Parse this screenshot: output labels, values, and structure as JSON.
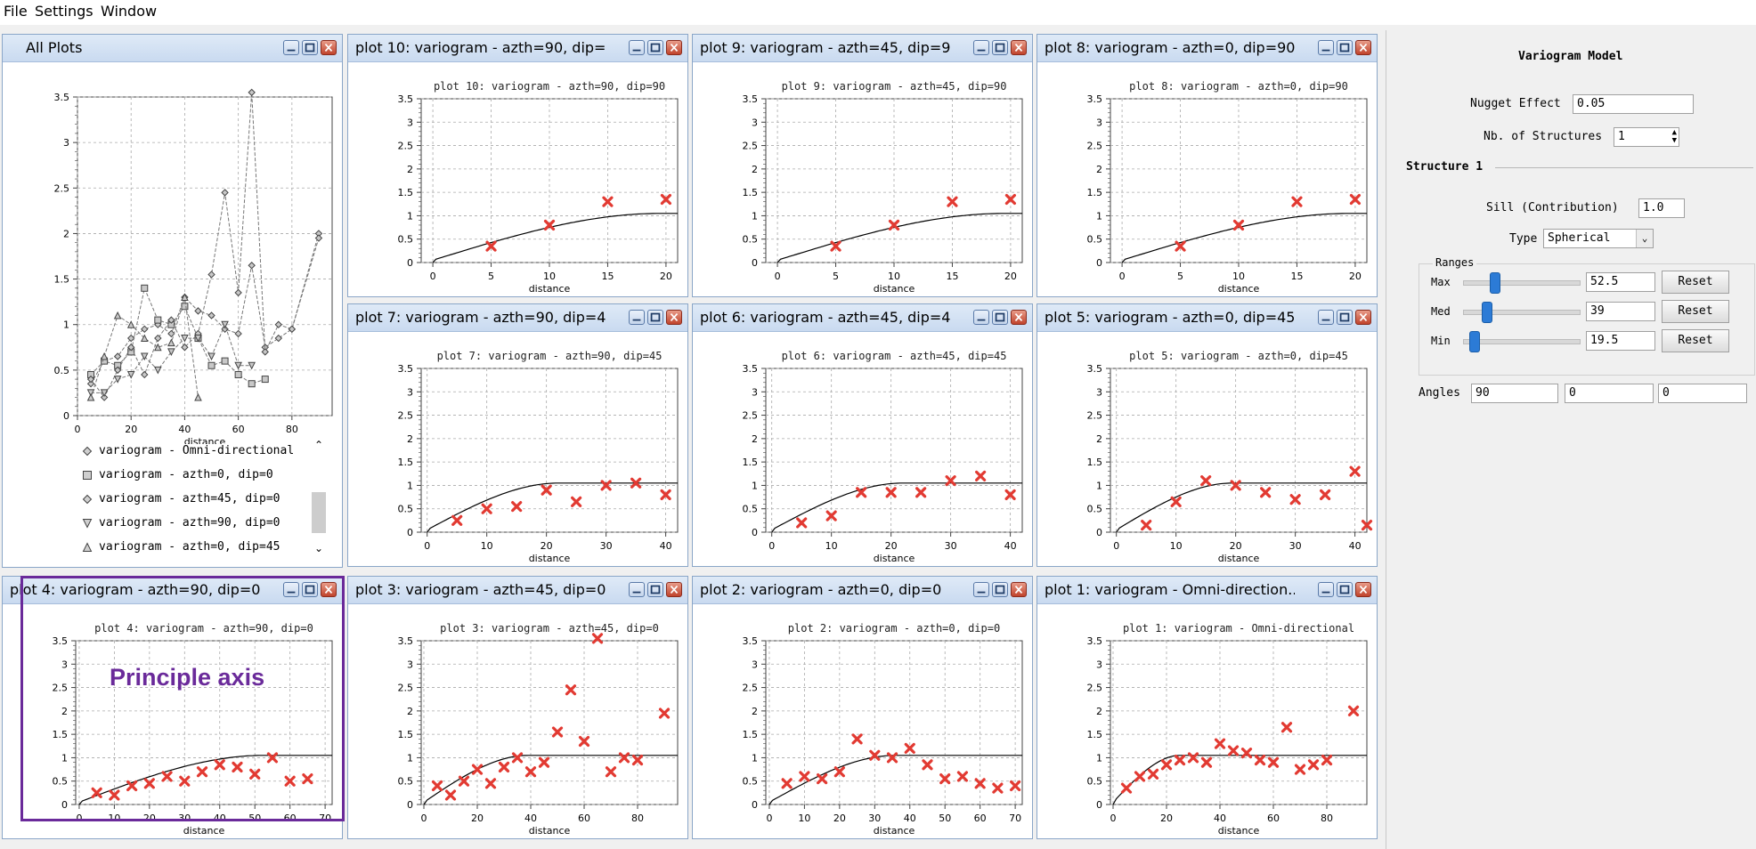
{
  "menu": {
    "items": [
      "File",
      "Settings",
      "Window"
    ]
  },
  "all_plots": {
    "title": "All Plots",
    "xlabel": "distance",
    "legend": [
      "variogram - Omni-directional",
      "variogram - azth=0, dip=0",
      "variogram - azth=45, dip=0",
      "variogram - azth=90, dip=0",
      "variogram - azth=0, dip=45"
    ]
  },
  "plots": [
    {
      "id": "plot10",
      "title": "plot 10:  variogram - azth=90, dip=...",
      "inner_title": "plot 10:  variogram - azth=90, dip=90"
    },
    {
      "id": "plot9",
      "title": "plot 9:  variogram - azth=45, dip=9...",
      "inner_title": "plot 9:  variogram - azth=45, dip=90"
    },
    {
      "id": "plot8",
      "title": "plot 8:  variogram - azth=0, dip=90",
      "inner_title": "plot 8:  variogram - azth=0, dip=90"
    },
    {
      "id": "plot7",
      "title": "plot 7:  variogram - azth=90, dip=4...",
      "inner_title": "plot 7:  variogram - azth=90, dip=45"
    },
    {
      "id": "plot6",
      "title": "plot 6:  variogram - azth=45, dip=4...",
      "inner_title": "plot 6:  variogram - azth=45, dip=45"
    },
    {
      "id": "plot5",
      "title": "plot 5:  variogram - azth=0, dip=45",
      "inner_title": "plot 5:  variogram - azth=0, dip=45"
    },
    {
      "id": "plot4",
      "title": "plot 4:  variogram - azth=90, dip=0",
      "inner_title": "plot 4:  variogram - azth=90, dip=0"
    },
    {
      "id": "plot3",
      "title": "plot 3:  variogram - azth=45, dip=0",
      "inner_title": "plot 3:  variogram - azth=45, dip=0"
    },
    {
      "id": "plot2",
      "title": "plot 2:  variogram - azth=0, dip=0",
      "inner_title": "plot 2:  variogram - azth=0, dip=0"
    },
    {
      "id": "plot1",
      "title": "plot 1:  variogram - Omni-direction...",
      "inner_title": "plot 1:  variogram - Omni-directional"
    }
  ],
  "annotation": {
    "label": "Principle axis",
    "color": "#6a2a9a"
  },
  "model_panel": {
    "title": "Variogram Model",
    "nugget_label": "Nugget Effect",
    "nugget_value": "0.05",
    "nb_structures_label": "Nb. of Structures",
    "nb_structures_value": "1",
    "structure_title": "Structure 1",
    "sill_label": "Sill (Contribution)",
    "sill_value": "1.0",
    "type_label": "Type",
    "type_value": "Spherical",
    "ranges_title": "Ranges",
    "ranges": [
      {
        "label": "Max",
        "value": "52.5",
        "slider": 0.28
      },
      {
        "label": "Med",
        "value": "39",
        "slider": 0.21
      },
      {
        "label": "Min",
        "value": "19.5",
        "slider": 0.1
      }
    ],
    "reset_label": "Reset",
    "angles_label": "Angles",
    "angles": [
      "90",
      "0",
      "0"
    ]
  },
  "chart_data": [
    {
      "id": "all",
      "type": "line",
      "title": "",
      "xlabel": "distance",
      "xlim": [
        0,
        95
      ],
      "ylim": [
        0,
        3.5
      ],
      "xticks": [
        0,
        20,
        40,
        60,
        80
      ],
      "yticks": [
        0,
        0.5,
        1,
        1.5,
        2,
        2.5,
        3,
        3.5
      ],
      "grid": true,
      "series": [
        {
          "name": "variogram - Omni-directional",
          "marker": "diamond",
          "x": [
            5,
            10,
            15,
            20,
            25,
            30,
            35,
            40,
            45,
            50,
            55,
            60,
            65,
            70,
            75,
            80,
            90
          ],
          "y": [
            0.35,
            0.6,
            0.65,
            0.85,
            0.95,
            1.0,
            0.9,
            1.3,
            1.15,
            1.1,
            0.95,
            0.9,
            1.65,
            0.75,
            0.85,
            0.95,
            2.0
          ]
        },
        {
          "name": "variogram - azth=0, dip=0",
          "marker": "square",
          "x": [
            5,
            10,
            15,
            20,
            25,
            30,
            35,
            40,
            45,
            50,
            55,
            60,
            65,
            70
          ],
          "y": [
            0.45,
            0.6,
            0.55,
            0.7,
            1.4,
            1.05,
            1.0,
            1.2,
            0.85,
            0.55,
            0.6,
            0.45,
            0.35,
            0.4
          ]
        },
        {
          "name": "variogram - azth=45, dip=0",
          "marker": "diamond",
          "x": [
            5,
            10,
            15,
            20,
            25,
            30,
            35,
            40,
            45,
            50,
            55,
            60,
            65,
            70,
            75,
            80,
            90
          ],
          "y": [
            0.4,
            0.2,
            0.5,
            0.75,
            0.45,
            0.85,
            1.05,
            0.75,
            0.9,
            1.55,
            2.45,
            1.35,
            3.55,
            0.7,
            1.0,
            0.95,
            1.95
          ]
        },
        {
          "name": "variogram - azth=90, dip=0",
          "marker": "triangle-down",
          "x": [
            5,
            10,
            15,
            20,
            25,
            30,
            35,
            40,
            45,
            50,
            55,
            60,
            65
          ],
          "y": [
            0.25,
            0.25,
            0.4,
            0.45,
            0.65,
            0.5,
            0.7,
            0.85,
            0.85,
            0.65,
            1.0,
            0.55,
            0.55
          ]
        },
        {
          "name": "variogram - azth=0, dip=45",
          "marker": "triangle-up",
          "x": [
            5,
            10,
            15,
            20,
            25,
            30,
            35,
            40,
            45
          ],
          "y": [
            0.2,
            0.65,
            1.1,
            1.0,
            0.85,
            0.75,
            0.8,
            1.3,
            0.2
          ]
        }
      ]
    },
    {
      "id": "plot10",
      "type": "scatter",
      "title": "plot 10:  variogram - azth=90, dip=90",
      "xlabel": "distance",
      "xlim": [
        -1,
        21
      ],
      "ylim": [
        0,
        3.5
      ],
      "xticks": [
        0,
        5,
        10,
        15,
        20
      ],
      "yticks": [
        0,
        0.5,
        1,
        1.5,
        2,
        2.5,
        3,
        3.5
      ],
      "points": {
        "x": [
          5,
          10,
          15,
          20
        ],
        "y": [
          0.35,
          0.8,
          1.3,
          1.35
        ]
      },
      "model": {
        "nugget": 0.05,
        "sill": 1.0,
        "range": 19.5
      }
    },
    {
      "id": "plot9",
      "type": "scatter",
      "title": "plot 9:  variogram - azth=45, dip=90",
      "xlabel": "distance",
      "xlim": [
        -1,
        21
      ],
      "ylim": [
        0,
        3.5
      ],
      "xticks": [
        0,
        5,
        10,
        15,
        20
      ],
      "yticks": [
        0,
        0.5,
        1,
        1.5,
        2,
        2.5,
        3,
        3.5
      ],
      "points": {
        "x": [
          5,
          10,
          15,
          20
        ],
        "y": [
          0.35,
          0.8,
          1.3,
          1.35
        ]
      },
      "model": {
        "nugget": 0.05,
        "sill": 1.0,
        "range": 19.5
      }
    },
    {
      "id": "plot8",
      "type": "scatter",
      "title": "plot 8:  variogram - azth=0, dip=90",
      "xlabel": "distance",
      "xlim": [
        -1,
        21
      ],
      "ylim": [
        0,
        3.5
      ],
      "xticks": [
        0,
        5,
        10,
        15,
        20
      ],
      "yticks": [
        0,
        0.5,
        1,
        1.5,
        2,
        2.5,
        3,
        3.5
      ],
      "points": {
        "x": [
          5,
          10,
          15,
          20
        ],
        "y": [
          0.35,
          0.8,
          1.3,
          1.35
        ]
      },
      "model": {
        "nugget": 0.05,
        "sill": 1.0,
        "range": 19.5
      }
    },
    {
      "id": "plot7",
      "type": "scatter",
      "title": "plot 7:  variogram - azth=90, dip=45",
      "xlabel": "distance",
      "xlim": [
        -1,
        42
      ],
      "ylim": [
        0,
        3.5
      ],
      "xticks": [
        0,
        10,
        20,
        30,
        40
      ],
      "yticks": [
        0,
        0.5,
        1,
        1.5,
        2,
        2.5,
        3,
        3.5
      ],
      "points": {
        "x": [
          5,
          10,
          15,
          20,
          25,
          30,
          35,
          40
        ],
        "y": [
          0.25,
          0.5,
          0.55,
          0.9,
          0.65,
          1.0,
          1.05,
          0.8
        ]
      },
      "model": {
        "nugget": 0.05,
        "sill": 1.0,
        "range": 22
      }
    },
    {
      "id": "plot6",
      "type": "scatter",
      "title": "plot 6:  variogram - azth=45, dip=45",
      "xlabel": "distance",
      "xlim": [
        -1,
        42
      ],
      "ylim": [
        0,
        3.5
      ],
      "xticks": [
        0,
        10,
        20,
        30,
        40
      ],
      "yticks": [
        0,
        0.5,
        1,
        1.5,
        2,
        2.5,
        3,
        3.5
      ],
      "points": {
        "x": [
          5,
          10,
          15,
          20,
          25,
          30,
          35,
          40
        ],
        "y": [
          0.2,
          0.35,
          0.85,
          0.85,
          0.85,
          1.1,
          1.2,
          0.8
        ]
      },
      "model": {
        "nugget": 0.05,
        "sill": 1.0,
        "range": 22
      }
    },
    {
      "id": "plot5",
      "type": "scatter",
      "title": "plot 5:  variogram - azth=0, dip=45",
      "xlabel": "distance",
      "xlim": [
        -1,
        42
      ],
      "ylim": [
        0,
        3.5
      ],
      "xticks": [
        0,
        10,
        20,
        30,
        40
      ],
      "yticks": [
        0,
        0.5,
        1,
        1.5,
        2,
        2.5,
        3,
        3.5
      ],
      "points": {
        "x": [
          5,
          10,
          15,
          20,
          25,
          30,
          35,
          40,
          42
        ],
        "y": [
          0.15,
          0.65,
          1.1,
          1.0,
          0.85,
          0.7,
          0.8,
          1.3,
          0.15
        ]
      },
      "model": {
        "nugget": 0.05,
        "sill": 1.0,
        "range": 19.5
      }
    },
    {
      "id": "plot4",
      "type": "scatter",
      "title": "plot 4:  variogram - azth=90, dip=0",
      "xlabel": "distance",
      "xlim": [
        -1,
        72
      ],
      "ylim": [
        0,
        3.5
      ],
      "xticks": [
        0,
        10,
        20,
        30,
        40,
        50,
        60,
        70
      ],
      "yticks": [
        0,
        0.5,
        1,
        1.5,
        2,
        2.5,
        3,
        3.5
      ],
      "points": {
        "x": [
          5,
          10,
          15,
          20,
          25,
          30,
          35,
          40,
          45,
          50,
          55,
          60,
          65
        ],
        "y": [
          0.25,
          0.2,
          0.4,
          0.45,
          0.6,
          0.5,
          0.7,
          0.85,
          0.8,
          0.65,
          1.0,
          0.5,
          0.55
        ]
      },
      "model": {
        "nugget": 0.05,
        "sill": 1.0,
        "range": 52.5
      }
    },
    {
      "id": "plot3",
      "type": "scatter",
      "title": "plot 3:  variogram - azth=45, dip=0",
      "xlabel": "distance",
      "xlim": [
        -1,
        95
      ],
      "ylim": [
        0,
        3.5
      ],
      "xticks": [
        0,
        20,
        40,
        60,
        80
      ],
      "yticks": [
        0,
        0.5,
        1,
        1.5,
        2,
        2.5,
        3,
        3.5
      ],
      "points": {
        "x": [
          5,
          10,
          15,
          20,
          25,
          30,
          35,
          40,
          45,
          50,
          55,
          60,
          65,
          70,
          75,
          80,
          90
        ],
        "y": [
          0.4,
          0.2,
          0.5,
          0.75,
          0.45,
          0.8,
          1.0,
          0.7,
          0.9,
          1.55,
          2.45,
          1.35,
          3.55,
          0.7,
          1.0,
          0.95,
          1.95
        ]
      },
      "model": {
        "nugget": 0.05,
        "sill": 1.0,
        "range": 39
      }
    },
    {
      "id": "plot2",
      "type": "scatter",
      "title": "plot 2:  variogram - azth=0, dip=0",
      "xlabel": "distance",
      "xlim": [
        -1,
        72
      ],
      "ylim": [
        0,
        3.5
      ],
      "xticks": [
        0,
        10,
        20,
        30,
        40,
        50,
        60,
        70
      ],
      "yticks": [
        0,
        0.5,
        1,
        1.5,
        2,
        2.5,
        3,
        3.5
      ],
      "points": {
        "x": [
          5,
          10,
          15,
          20,
          25,
          30,
          35,
          40,
          45,
          50,
          55,
          60,
          65,
          70
        ],
        "y": [
          0.45,
          0.6,
          0.55,
          0.7,
          1.4,
          1.05,
          1.0,
          1.2,
          0.85,
          0.55,
          0.6,
          0.45,
          0.35,
          0.4
        ]
      },
      "model": {
        "nugget": 0.05,
        "sill": 1.0,
        "range": 36
      }
    },
    {
      "id": "plot1",
      "type": "scatter",
      "title": "plot 1:  variogram - Omni-directional",
      "xlabel": "distance",
      "xlim": [
        -1,
        95
      ],
      "ylim": [
        0,
        3.5
      ],
      "xticks": [
        0,
        20,
        40,
        60,
        80
      ],
      "yticks": [
        0,
        0.5,
        1,
        1.5,
        2,
        2.5,
        3,
        3.5
      ],
      "points": {
        "x": [
          5,
          10,
          15,
          20,
          25,
          30,
          35,
          40,
          45,
          50,
          55,
          60,
          65,
          70,
          75,
          80,
          90
        ],
        "y": [
          0.35,
          0.6,
          0.65,
          0.85,
          0.95,
          1.0,
          0.9,
          1.3,
          1.15,
          1.1,
          0.95,
          0.9,
          1.65,
          0.75,
          0.85,
          0.95,
          2.0
        ]
      },
      "model": {
        "nugget": 0.05,
        "sill": 1.0,
        "range": 25
      }
    }
  ]
}
